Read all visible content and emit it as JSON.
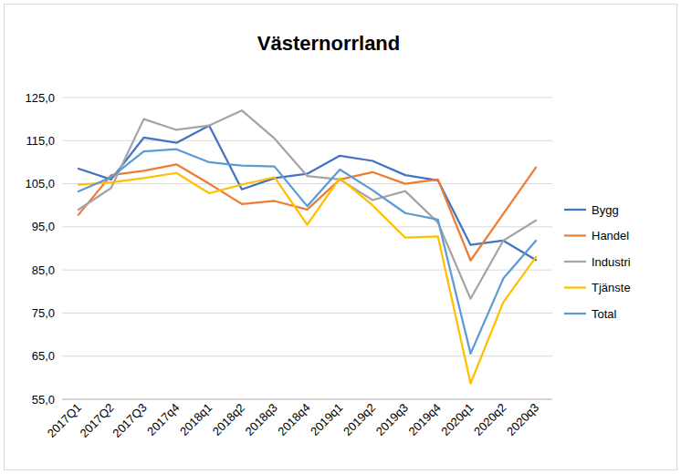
{
  "chart_data": {
    "type": "line",
    "title": "Västernorrland",
    "categories": [
      "2017Q1",
      "2017Q2",
      "2017Q3",
      "2017q4",
      "2018q1",
      "2018q2",
      "2018q3",
      "2018q4",
      "2019q1",
      "2019q2",
      "2019q3",
      "2019q4",
      "2020q1",
      "2020q2",
      "2020q3"
    ],
    "series": [
      {
        "name": "Bygg",
        "color": "#4472c4",
        "values": [
          108.5,
          106,
          115.7,
          114.5,
          118.5,
          103.7,
          106.3,
          107.3,
          111.5,
          110.3,
          107,
          105.8,
          90.8,
          91.8,
          87.3
        ]
      },
      {
        "name": "Handel",
        "color": "#ed7d31",
        "values": [
          97.8,
          107,
          108,
          109.5,
          105,
          100.3,
          101,
          99,
          106,
          107.7,
          105,
          106,
          87.2,
          98,
          108.8
        ]
      },
      {
        "name": "Industri",
        "color": "#a5a5a5",
        "values": [
          99,
          104,
          120,
          117.5,
          118.5,
          122,
          115.5,
          106.8,
          106,
          101.2,
          103.3,
          96,
          78.3,
          91.8,
          96.5
        ]
      },
      {
        "name": "Tjänste",
        "color": "#ffc000",
        "values": [
          104.8,
          105.3,
          106.3,
          107.5,
          102.8,
          104.8,
          106.5,
          95.5,
          106.3,
          100,
          92.5,
          92.8,
          58.7,
          77.5,
          88
        ]
      },
      {
        "name": "Total",
        "color": "#5b9bd5",
        "values": [
          103.2,
          106.5,
          112.5,
          113,
          110,
          109.2,
          109,
          99.8,
          108.3,
          103.5,
          98.2,
          96.7,
          65.6,
          83,
          91.8
        ]
      }
    ],
    "ylim": [
      55,
      125
    ],
    "yticks": [
      {
        "value": 55,
        "label": "55,0"
      },
      {
        "value": 65,
        "label": "65,0"
      },
      {
        "value": 75,
        "label": "75,0"
      },
      {
        "value": 85,
        "label": "85,0"
      },
      {
        "value": 95,
        "label": "95,0"
      },
      {
        "value": 105,
        "label": "105,0"
      },
      {
        "value": 115,
        "label": "115,0"
      },
      {
        "value": 125,
        "label": "125,0"
      }
    ],
    "grid": true,
    "legend": "right"
  }
}
